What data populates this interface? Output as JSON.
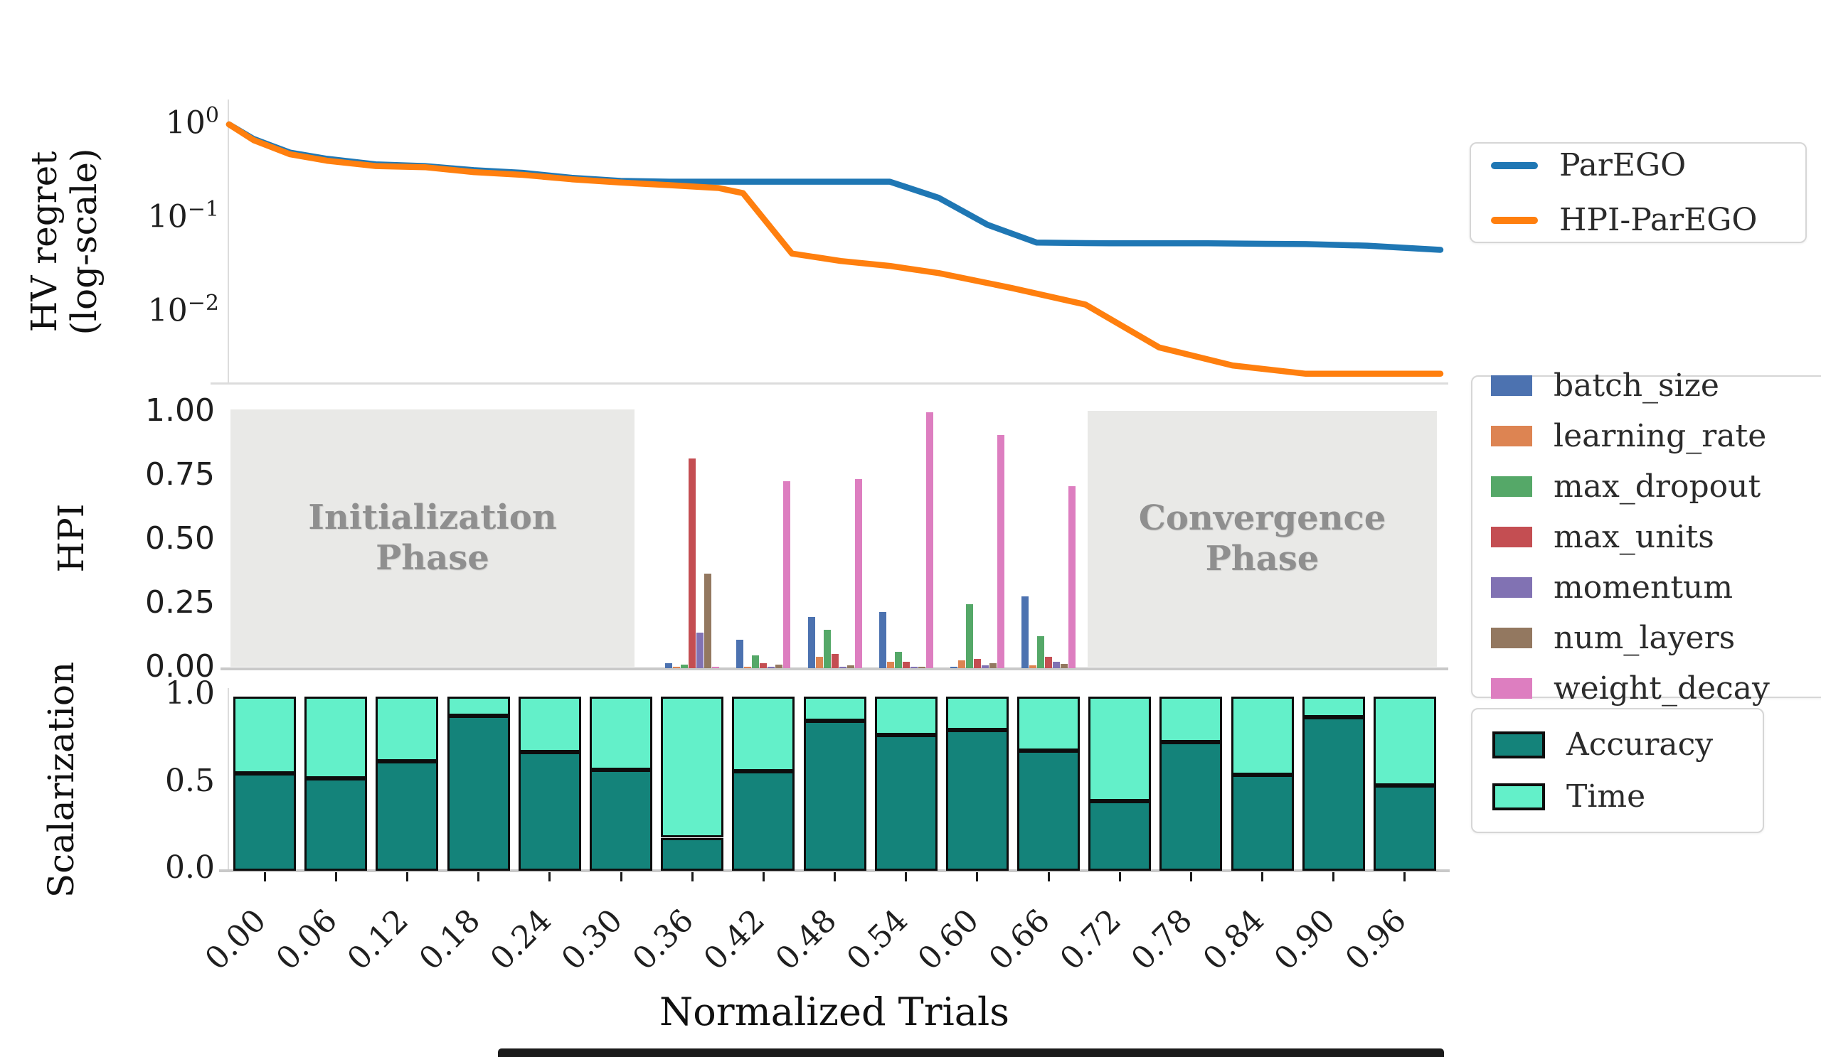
{
  "chart_data": [
    {
      "id": "hv_regret",
      "type": "line",
      "ylabel": "HV regret (log-scale)",
      "ylabel_lines": [
        "HV regret",
        "(log-scale)"
      ],
      "yscale": "log",
      "ylim": [
        0.0017,
        1.3
      ],
      "xrange": [
        0.0,
        0.99
      ],
      "grid": false,
      "legend_position": "right",
      "yticks": [
        {
          "base": "10",
          "exp": "0",
          "value": 1
        },
        {
          "base": "10",
          "exp": "−1",
          "value": 0.1
        },
        {
          "base": "10",
          "exp": "−2",
          "value": 0.01
        }
      ],
      "series": [
        {
          "name": "ParEGO",
          "color": "#1f77b4",
          "x": [
            0.0,
            0.02,
            0.05,
            0.08,
            0.12,
            0.16,
            0.2,
            0.24,
            0.28,
            0.32,
            0.36,
            0.42,
            0.48,
            0.54,
            0.58,
            0.62,
            0.66,
            0.72,
            0.8,
            0.88,
            0.93,
            0.99
          ],
          "y": [
            1.0,
            0.7,
            0.5,
            0.43,
            0.375,
            0.36,
            0.325,
            0.305,
            0.27,
            0.25,
            0.245,
            0.245,
            0.245,
            0.245,
            0.165,
            0.085,
            0.055,
            0.054,
            0.054,
            0.053,
            0.051,
            0.046
          ]
        },
        {
          "name": "HPI-ParEGO",
          "color": "#ff7f0e",
          "x": [
            0.0,
            0.02,
            0.05,
            0.08,
            0.12,
            0.16,
            0.2,
            0.24,
            0.28,
            0.32,
            0.36,
            0.4,
            0.42,
            0.46,
            0.5,
            0.54,
            0.58,
            0.64,
            0.7,
            0.76,
            0.82,
            0.88,
            0.93,
            0.99
          ],
          "y": [
            1.0,
            0.68,
            0.48,
            0.41,
            0.36,
            0.35,
            0.31,
            0.29,
            0.26,
            0.24,
            0.225,
            0.21,
            0.185,
            0.042,
            0.035,
            0.031,
            0.026,
            0.018,
            0.012,
            0.0042,
            0.0027,
            0.0022,
            0.0022,
            0.0022
          ]
        }
      ]
    },
    {
      "id": "hpi",
      "type": "bar",
      "ylabel": "HPI",
      "ylim": [
        0,
        1
      ],
      "grid": false,
      "legend_position": "right",
      "yticks": [
        1.0,
        0.75,
        0.5,
        0.25,
        0.0
      ],
      "categories": [
        0.36,
        0.42,
        0.48,
        0.54,
        0.6,
        0.66
      ],
      "series": [
        {
          "name": "batch_size",
          "color": "#4c72b0",
          "values": [
            0.02,
            0.11,
            0.2,
            0.22,
            0.005,
            0.28
          ]
        },
        {
          "name": "learning_rate",
          "color": "#dd8452",
          "values": [
            0.005,
            0.005,
            0.045,
            0.025,
            0.03,
            0.01
          ]
        },
        {
          "name": "max_dropout",
          "color": "#55a868",
          "values": [
            0.015,
            0.05,
            0.15,
            0.065,
            0.25,
            0.125
          ]
        },
        {
          "name": "max_units",
          "color": "#c44e52",
          "values": [
            0.82,
            0.02,
            0.055,
            0.025,
            0.035,
            0.045
          ]
        },
        {
          "name": "momentum",
          "color": "#8172b3",
          "values": [
            0.14,
            0.005,
            0.005,
            0.005,
            0.01,
            0.025
          ]
        },
        {
          "name": "num_layers",
          "color": "#937860",
          "values": [
            0.37,
            0.015,
            0.01,
            0.005,
            0.02,
            0.018
          ]
        },
        {
          "name": "weight_decay",
          "color": "#dd7ec0",
          "values": [
            0.005,
            0.73,
            0.74,
            1.0,
            0.91,
            0.71
          ]
        }
      ],
      "annotations": [
        {
          "lines": [
            "Initialization",
            "Phase"
          ],
          "span": [
            0.0,
            0.33
          ]
        },
        {
          "lines": [
            "Convergence",
            "Phase"
          ],
          "span": [
            0.7,
            0.99
          ]
        }
      ]
    },
    {
      "id": "scalarization",
      "type": "stacked_bar",
      "ylabel": "Scalarization",
      "xlabel": "Normalized Trials",
      "ylim": [
        0,
        1
      ],
      "grid": false,
      "legend_position": "right",
      "yticks": [
        1.0,
        0.5,
        0.0
      ],
      "categories": [
        "0.00",
        "0.06",
        "0.12",
        "0.18",
        "0.24",
        "0.30",
        "0.36",
        "0.42",
        "0.48",
        "0.54",
        "0.60",
        "0.66",
        "0.72",
        "0.78",
        "0.84",
        "0.90",
        "0.96"
      ],
      "series": [
        {
          "name": "Accuracy",
          "color": "#14837a",
          "values": [
            0.56,
            0.53,
            0.63,
            0.89,
            0.68,
            0.58,
            0.19,
            0.57,
            0.86,
            0.78,
            0.81,
            0.69,
            0.4,
            0.74,
            0.55,
            0.88,
            0.49
          ]
        },
        {
          "name": "Time",
          "color": "#63f0c9",
          "values": [
            0.44,
            0.47,
            0.37,
            0.11,
            0.32,
            0.42,
            0.81,
            0.43,
            0.14,
            0.22,
            0.19,
            0.31,
            0.6,
            0.26,
            0.45,
            0.12,
            0.51
          ]
        }
      ]
    }
  ]
}
